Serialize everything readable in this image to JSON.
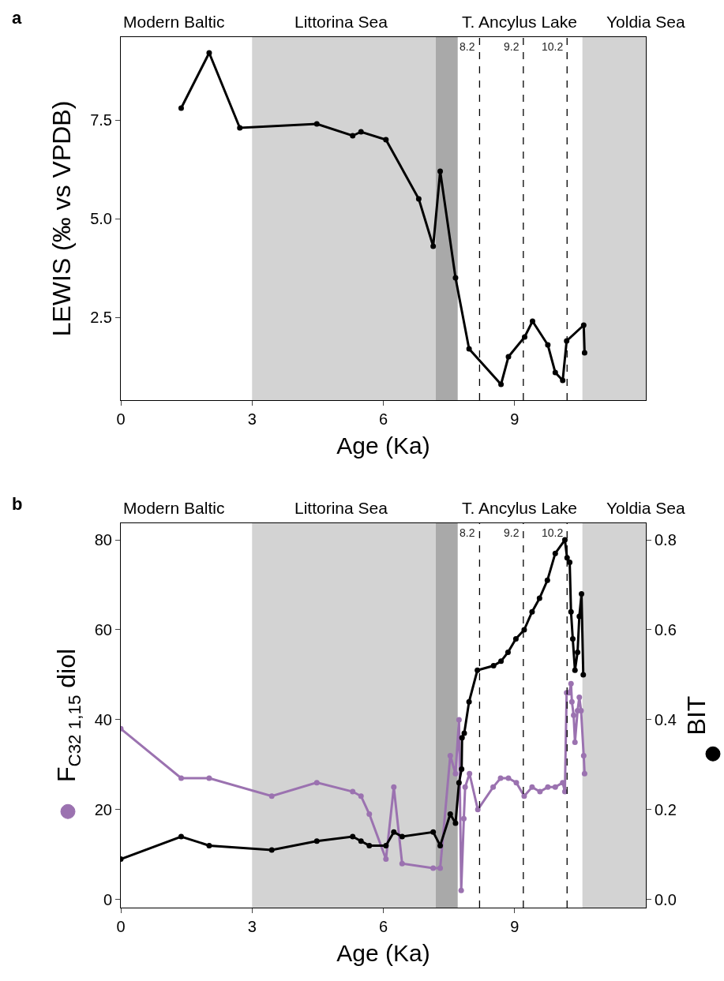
{
  "chart_data": [
    {
      "type": "line",
      "ylabel": "LEWIS (‰ vs VPDB)",
      "xlabel": "Age (Ka)",
      "marker": "circle",
      "line_style": "solid",
      "grid": false,
      "annotations": [
        "a",
        "Modern Baltic",
        "Littorina Sea",
        "T. Ancylus Lake",
        "Yoldia Sea"
      ],
      "xlim": [
        0,
        12
      ],
      "xticks": [
        0,
        3,
        6,
        9
      ],
      "ylim": [
        0.4,
        9.6
      ],
      "yticks": [
        2.5,
        {
          "value": 5,
          "label": "5.0"
        },
        7.5
      ],
      "bands": [
        {
          "axis": "x",
          "from": 3,
          "to": 7.2,
          "color": "#d3d3d3"
        },
        {
          "axis": "x",
          "from": 7.2,
          "to": 7.7,
          "color": "#a9a9a9"
        },
        {
          "axis": "x",
          "from": 10.55,
          "to": 12,
          "color": "#d3d3d3"
        }
      ],
      "ref_lines": [
        {
          "axis": "x",
          "value": 8.2,
          "label": "8.2",
          "line_style": "dashed"
        },
        {
          "axis": "x",
          "value": 9.2,
          "label": "9.2",
          "line_style": "dashed"
        },
        {
          "axis": "x",
          "value": 10.2,
          "label": "10.2",
          "line_style": "dashed"
        }
      ],
      "series": [
        {
          "color": "#000000",
          "x": [
            1.38,
            2.02,
            2.72,
            4.48,
            5.3,
            5.49,
            6.06,
            6.81,
            7.14,
            7.3,
            7.65,
            7.96,
            8.69,
            8.86,
            9.23,
            9.41,
            9.76,
            9.93,
            10.1,
            10.19,
            10.58,
            10.6
          ],
          "values": [
            7.8,
            9.2,
            7.3,
            7.4,
            7.1,
            7.2,
            7.0,
            5.5,
            4.3,
            6.2,
            3.5,
            1.7,
            0.8,
            1.5,
            2.0,
            2.4,
            1.8,
            1.1,
            0.9,
            1.9,
            2.3,
            1.6
          ]
        }
      ]
    },
    {
      "type": "line",
      "ylabel": "F$_{C32 1,15}$ diol",
      "y2label": "BIT",
      "xlabel": "Age (Ka)",
      "marker": "circle",
      "line_style": "solid",
      "grid": false,
      "annotations": [
        "b",
        "Modern Baltic",
        "Littorina Sea",
        "T. Ancylus Lake",
        "Yoldia Sea"
      ],
      "xlim": [
        0,
        12
      ],
      "xticks": [
        0,
        3,
        6,
        9
      ],
      "ylim": [
        -1.8,
        83.7
      ],
      "yticks": [
        0,
        20,
        40,
        60,
        80
      ],
      "y2lim": [
        -0.018,
        0.837
      ],
      "y2ticks": [
        {
          "value": 0,
          "label": "0.0"
        },
        0.2,
        0.4,
        0.6,
        0.8
      ],
      "bands": [
        {
          "axis": "x",
          "from": 3,
          "to": 7.2,
          "color": "#d3d3d3"
        },
        {
          "axis": "x",
          "from": 7.2,
          "to": 7.7,
          "color": "#a9a9a9"
        },
        {
          "axis": "x",
          "from": 10.55,
          "to": 12,
          "color": "#d3d3d3"
        }
      ],
      "ref_lines": [
        {
          "axis": "x",
          "value": 8.2,
          "label": "8.2",
          "line_style": "dashed"
        },
        {
          "axis": "x",
          "value": 9.2,
          "label": "9.2",
          "line_style": "dashed"
        },
        {
          "axis": "x",
          "value": 10.2,
          "label": "10.2",
          "line_style": "dashed"
        }
      ],
      "series": [
        {
          "color": "#9b72b0",
          "x": [
            0,
            1.38,
            2.02,
            3.45,
            4.48,
            5.3,
            5.49,
            5.68,
            6.06,
            6.24,
            6.43,
            7.14,
            7.3,
            7.53,
            7.65,
            7.73,
            7.78,
            7.84,
            7.87,
            7.97,
            8.16,
            8.51,
            8.68,
            8.86,
            9.04,
            9.22,
            9.4,
            9.58,
            9.76,
            9.93,
            10.1,
            10.15,
            10.19,
            10.25,
            10.29,
            10.31,
            10.35,
            10.38,
            10.44,
            10.48,
            10.52,
            10.58,
            10.6
          ],
          "values": [
            38,
            27,
            27,
            23,
            26,
            24,
            23,
            19,
            9,
            25,
            8,
            7,
            7,
            32,
            28,
            40,
            2,
            18,
            25,
            28,
            20,
            25,
            27,
            27,
            26,
            23,
            25,
            24,
            25,
            25,
            26,
            24,
            46,
            46,
            48,
            44,
            41,
            35,
            42,
            45,
            42,
            32,
            28
          ]
        },
        {
          "color": "#000000",
          "axis": "y2",
          "x": [
            0,
            1.38,
            2.02,
            3.45,
            4.48,
            5.3,
            5.49,
            5.68,
            6.06,
            6.24,
            6.43,
            7.14,
            7.3,
            7.53,
            7.65,
            7.73,
            7.79,
            7.8,
            7.85,
            7.96,
            8.15,
            8.52,
            8.69,
            8.85,
            9.03,
            9.22,
            9.4,
            9.57,
            9.75,
            9.93,
            10.15,
            10.2,
            10.26,
            10.29,
            10.33,
            10.38,
            10.44,
            10.48,
            10.53,
            10.57
          ],
          "values": [
            0.09,
            0.14,
            0.12,
            0.11,
            0.13,
            0.14,
            0.13,
            0.12,
            0.12,
            0.15,
            0.14,
            0.15,
            0.12,
            0.19,
            0.17,
            0.26,
            0.29,
            0.36,
            0.37,
            0.44,
            0.51,
            0.52,
            0.53,
            0.55,
            0.58,
            0.6,
            0.64,
            0.67,
            0.71,
            0.77,
            0.8,
            0.76,
            0.75,
            0.64,
            0.58,
            0.51,
            0.55,
            0.63,
            0.68,
            0.5
          ]
        }
      ]
    }
  ]
}
